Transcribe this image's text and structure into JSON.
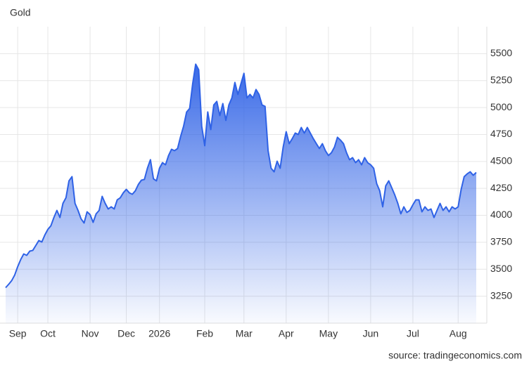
{
  "chart_data": {
    "type": "area",
    "title": "Gold",
    "source": "source: tradingeconomics.com",
    "color": "#2f62e6",
    "categories": [
      null,
      null,
      null,
      null,
      "Sep",
      null,
      null,
      null,
      null,
      null,
      null,
      null,
      null,
      null,
      "Oct",
      null,
      null,
      null,
      null,
      null,
      null,
      null,
      null,
      null,
      null,
      null,
      null,
      null,
      "Nov",
      null,
      null,
      null,
      null,
      null,
      null,
      null,
      null,
      null,
      null,
      null,
      "Dec",
      null,
      null,
      null,
      null,
      null,
      null,
      null,
      null,
      null,
      null,
      "2026",
      null,
      null,
      null,
      null,
      null,
      null,
      null,
      null,
      null,
      null,
      null,
      null,
      null,
      null,
      "Feb",
      null,
      null,
      null,
      null,
      null,
      null,
      null,
      null,
      null,
      null,
      null,
      null,
      "Mar",
      null,
      null,
      null,
      null,
      null,
      null,
      null,
      null,
      null,
      null,
      null,
      null,
      null,
      "Apr",
      null,
      null,
      null,
      null,
      null,
      null,
      null,
      null,
      null,
      null,
      null,
      null,
      null,
      "May",
      null,
      null,
      null,
      null,
      null,
      null,
      null,
      null,
      null,
      null,
      null,
      null,
      null,
      "Jun",
      null,
      null,
      null,
      null,
      null,
      null,
      null,
      null,
      null,
      null,
      null,
      null,
      null,
      "Jul",
      null,
      null,
      null,
      null,
      null,
      null,
      null,
      null,
      null,
      null,
      null,
      null,
      null,
      null,
      "Aug",
      null,
      null,
      null,
      null,
      null,
      null
    ],
    "values": [
      3329,
      3360,
      3394,
      3446,
      3524,
      3590,
      3642,
      3629,
      3668,
      3675,
      3720,
      3766,
      3753,
      3818,
      3870,
      3903,
      3980,
      4046,
      3980,
      4111,
      4163,
      4320,
      4359,
      4111,
      4046,
      3968,
      3929,
      4033,
      4007,
      3935,
      4014,
      4046,
      4176,
      4111,
      4059,
      4079,
      4059,
      4144,
      4163,
      4209,
      4241,
      4209,
      4196,
      4228,
      4287,
      4326,
      4333,
      4437,
      4516,
      4339,
      4320,
      4437,
      4489,
      4469,
      4555,
      4613,
      4600,
      4620,
      4731,
      4828,
      4959,
      4991,
      5220,
      5402,
      5350,
      4828,
      4646,
      4959,
      4796,
      5024,
      5057,
      4926,
      5037,
      4881,
      5024,
      5089,
      5233,
      5122,
      5220,
      5317,
      5089,
      5122,
      5089,
      5167,
      5122,
      5024,
      5011,
      4600,
      4437,
      4404,
      4502,
      4437,
      4633,
      4776,
      4665,
      4711,
      4763,
      4750,
      4815,
      4763,
      4815,
      4763,
      4711,
      4665,
      4620,
      4665,
      4600,
      4555,
      4581,
      4633,
      4724,
      4698,
      4665,
      4581,
      4516,
      4535,
      4489,
      4516,
      4469,
      4535,
      4489,
      4469,
      4437,
      4294,
      4228,
      4079,
      4274,
      4320,
      4255,
      4189,
      4111,
      4014,
      4079,
      4027,
      4046,
      4098,
      4144,
      4144,
      4033,
      4079,
      4046,
      4059,
      3980,
      4046,
      4111,
      4046,
      4079,
      4033,
      4079,
      4059,
      4079,
      4241,
      4359,
      4385,
      4404,
      4372,
      4398
    ],
    "ylim": [
      3000,
      5750
    ],
    "yticks": [
      3250,
      3500,
      3750,
      4000,
      4250,
      4500,
      4750,
      5000,
      5250,
      5500
    ],
    "grid": true
  }
}
